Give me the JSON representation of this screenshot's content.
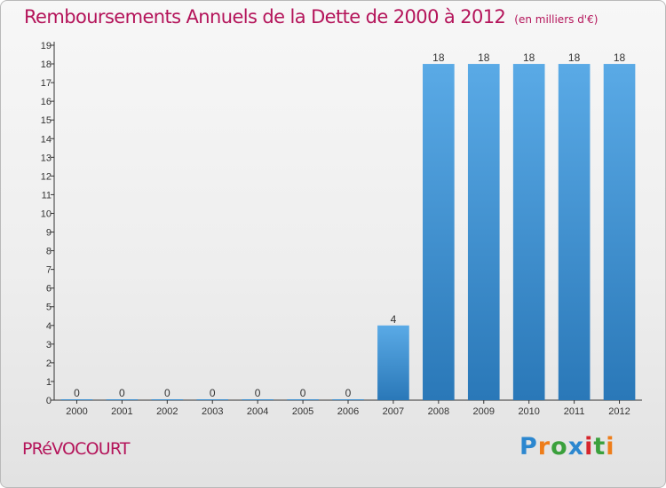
{
  "title": "Remboursements Annuels de la Dette de 2000 à 2012",
  "subtitle": "(en milliers d'€)",
  "commune": "PRéVOCOURT",
  "logo": [
    "P",
    "r",
    "o",
    "x",
    "i",
    "t",
    "i"
  ],
  "colors": {
    "title": "#b4145a",
    "bar_light": "#5aaae6",
    "bar_dark": "#2a78b8"
  },
  "chart_data": {
    "type": "bar",
    "categories": [
      "2000",
      "2001",
      "2002",
      "2003",
      "2004",
      "2005",
      "2006",
      "2007",
      "2008",
      "2009",
      "2010",
      "2011",
      "2012"
    ],
    "values": [
      0,
      0,
      0,
      0,
      0,
      0,
      0,
      4,
      18,
      18,
      18,
      18,
      18
    ],
    "data_labels": [
      "0",
      "0",
      "0",
      "0",
      "0",
      "0",
      "0",
      "4",
      "18",
      "18",
      "18",
      "18",
      "18"
    ],
    "ylim": [
      0,
      19
    ],
    "yticks": [
      "0",
      "1",
      "2",
      "3",
      "4",
      "5",
      "6",
      "7",
      "8",
      "9",
      "10",
      "11",
      "12",
      "13",
      "14",
      "15",
      "16",
      "17",
      "18",
      "19"
    ],
    "grid": false,
    "legend": "none"
  }
}
